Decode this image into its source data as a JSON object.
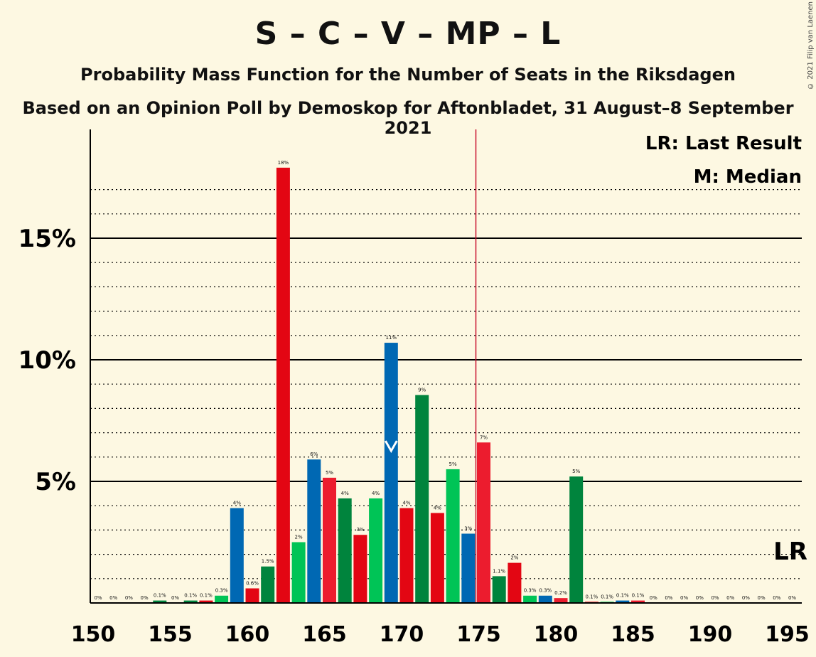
{
  "header": {
    "title": "S – C – V – MP – L",
    "subtitle": "Probability Mass Function for the Number of Seats in the Riksdagen",
    "subtitle2": "Based on an Opinion Poll by Demoskop for Aftonbladet, 31 August–8 September 2021",
    "copyright": "© 2021 Filip van Laenen"
  },
  "legend": {
    "lr": "LR: Last Result",
    "median": "M: Median",
    "lr_short": "LR"
  },
  "chart_data": {
    "type": "bar",
    "title": "S – C – V – MP – L",
    "subtitle": "Probability Mass Function for the Number of Seats in the Riksdagen",
    "xlabel": "",
    "ylabel": "",
    "x_ticks": [
      150,
      155,
      160,
      165,
      170,
      175,
      180,
      185,
      190,
      195
    ],
    "y_ticks": [
      "5%",
      "10%",
      "15%"
    ],
    "y_tick_values": [
      5,
      10,
      15
    ],
    "xlim": [
      150,
      195
    ],
    "ylim": [
      0,
      19.5
    ],
    "grid": "dotted minor lines every 1%, solid at 5%",
    "last_result_seat": 175,
    "median_seat": 169,
    "colors": {
      "blue": "#0068b3",
      "red": "#e30613",
      "lightred": "#ec1c2e",
      "green": "#00843d",
      "lightgreen": "#00c456",
      "lr_line": "#c8102e"
    },
    "bars": [
      {
        "seat": 150,
        "value": 0,
        "label": "0%",
        "color": "blue"
      },
      {
        "seat": 151,
        "value": 0,
        "label": "0%",
        "color": "red"
      },
      {
        "seat": 152,
        "value": 0,
        "label": "0%",
        "color": "green"
      },
      {
        "seat": 153,
        "value": 0,
        "label": "0%",
        "color": "red"
      },
      {
        "seat": 154,
        "value": 0.1,
        "label": "0.1%",
        "color": "green"
      },
      {
        "seat": 155,
        "value": 0,
        "label": "0%",
        "color": "blue"
      },
      {
        "seat": 156,
        "value": 0.1,
        "label": "0.1%",
        "color": "green"
      },
      {
        "seat": 157,
        "value": 0.1,
        "label": "0.1%",
        "color": "red"
      },
      {
        "seat": 158,
        "value": 0.3,
        "label": "0.3%",
        "color": "lightgreen"
      },
      {
        "seat": 159,
        "value": 3.9,
        "label": "4%",
        "color": "blue"
      },
      {
        "seat": 160,
        "value": 0.6,
        "label": "0.6%",
        "color": "red"
      },
      {
        "seat": 161,
        "value": 1.5,
        "label": "1.5%",
        "color": "green"
      },
      {
        "seat": 162,
        "value": 17.9,
        "label": "18%",
        "color": "red"
      },
      {
        "seat": 163,
        "value": 2.5,
        "label": "2%",
        "color": "lightgreen"
      },
      {
        "seat": 164,
        "value": 5.9,
        "label": "6%",
        "color": "blue"
      },
      {
        "seat": 165,
        "value": 5.15,
        "label": "5%",
        "color": "lightred"
      },
      {
        "seat": 166,
        "value": 4.3,
        "label": "4%",
        "color": "green"
      },
      {
        "seat": 167,
        "value": 2.8,
        "label": "3%",
        "color": "red"
      },
      {
        "seat": 168,
        "value": 4.3,
        "label": "4%",
        "color": "lightgreen"
      },
      {
        "seat": 169,
        "value": 10.7,
        "label": "11%",
        "color": "blue"
      },
      {
        "seat": 170,
        "value": 3.9,
        "label": "4%",
        "color": "red"
      },
      {
        "seat": 171,
        "value": 8.55,
        "label": "9%",
        "color": "green"
      },
      {
        "seat": 172,
        "value": 3.7,
        "label": "4%",
        "color": "red"
      },
      {
        "seat": 173,
        "value": 5.5,
        "label": "5%",
        "color": "lightgreen"
      },
      {
        "seat": 174,
        "value": 2.85,
        "label": "3%",
        "color": "blue"
      },
      {
        "seat": 175,
        "value": 6.6,
        "label": "7%",
        "color": "lightred"
      },
      {
        "seat": 176,
        "value": 1.1,
        "label": "1.1%",
        "color": "green"
      },
      {
        "seat": 177,
        "value": 1.65,
        "label": "2%",
        "color": "red"
      },
      {
        "seat": 178,
        "value": 0.3,
        "label": "0.3%",
        "color": "lightgreen"
      },
      {
        "seat": 179,
        "value": 0.3,
        "label": "0.3%",
        "color": "blue"
      },
      {
        "seat": 180,
        "value": 0.2,
        "label": "0.2%",
        "color": "lightred"
      },
      {
        "seat": 181,
        "value": 5.2,
        "label": "5%",
        "color": "green"
      },
      {
        "seat": 182,
        "value": 0.05,
        "label": "0.1%",
        "color": "red"
      },
      {
        "seat": 183,
        "value": 0.05,
        "label": "0.1%",
        "color": "lightgreen"
      },
      {
        "seat": 184,
        "value": 0.1,
        "label": "0.1%",
        "color": "blue"
      },
      {
        "seat": 185,
        "value": 0.1,
        "label": "0.1%",
        "color": "lightred"
      },
      {
        "seat": 186,
        "value": 0,
        "label": "0%",
        "color": "green"
      },
      {
        "seat": 187,
        "value": 0,
        "label": "0%",
        "color": "red"
      },
      {
        "seat": 188,
        "value": 0,
        "label": "0%",
        "color": "green"
      },
      {
        "seat": 189,
        "value": 0,
        "label": "0%",
        "color": "blue"
      },
      {
        "seat": 190,
        "value": 0,
        "label": "0%",
        "color": "red"
      },
      {
        "seat": 191,
        "value": 0,
        "label": "0%",
        "color": "green"
      },
      {
        "seat": 192,
        "value": 0,
        "label": "0%",
        "color": "red"
      },
      {
        "seat": 193,
        "value": 0,
        "label": "0%",
        "color": "green"
      },
      {
        "seat": 194,
        "value": 0,
        "label": "0%",
        "color": "blue"
      },
      {
        "seat": 195,
        "value": 0,
        "label": "0%",
        "color": "red"
      }
    ]
  }
}
